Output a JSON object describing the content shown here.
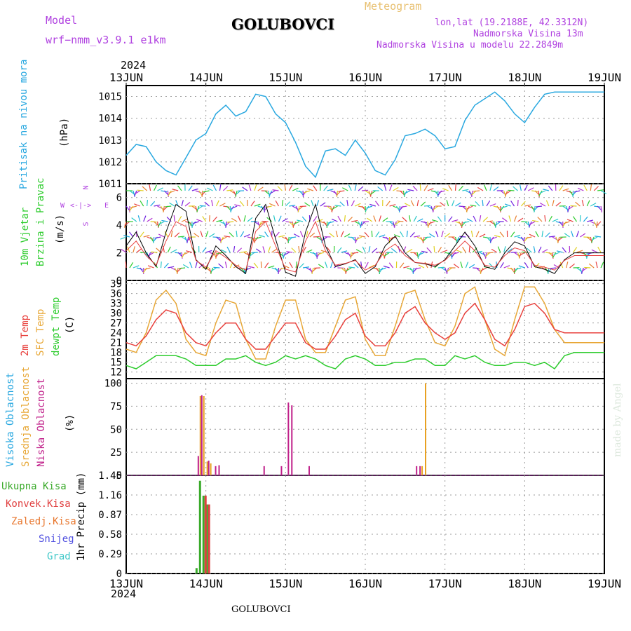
{
  "header": {
    "model_label": "Model",
    "model_name": "wrf−nmm_v3.9.1  e1km",
    "title": "GOLUBOVCI",
    "subtitle": "Meteogram",
    "lonlat": "lon,lat (19.2188E, 42.3312N)",
    "elevation": "Nadmorska Visina 13m",
    "model_elevation": "Nadmorska Visina u modelu 22.2849m",
    "year_top": "2024",
    "year_bottom": "2024",
    "footer_title": "GOLUBOVCI",
    "credit": "made by Angel"
  },
  "days": [
    "13JUN",
    "14JUN",
    "15JUN",
    "16JUN",
    "17JUN",
    "18JUN",
    "19JUN"
  ],
  "panels": {
    "pressure": {
      "label": "Pritisak na nivou mora",
      "unit": "(hPa)",
      "ticks": [
        "1015",
        "1014",
        "1013",
        "1012",
        "1011"
      ]
    },
    "wind": {
      "label1": "10m Vjetar",
      "label2": "Brzina i Pravac",
      "unit": "(m/s)",
      "ticks": [
        "6",
        "4",
        "2",
        "0"
      ],
      "compass_n": "N",
      "compass_s": "S",
      "compass_e": "E",
      "compass_w": "W"
    },
    "temp": {
      "label1": "2m Temp",
      "label2": "SFC Temp",
      "label3": "dewpt Temp",
      "unit": "(C)",
      "ticks": [
        "39",
        "36",
        "33",
        "30",
        "27",
        "24",
        "21",
        "18",
        "15",
        "12"
      ]
    },
    "cloud": {
      "label1": "Visoka Oblacnost",
      "label2": "Srednja Oblacnost",
      "label3": "Niska Oblacnost",
      "unit": "(%)",
      "ticks": [
        "100",
        "75",
        "50",
        "25",
        "0"
      ]
    },
    "precip": {
      "legend": [
        "Ukupna Kisa",
        "Konvek.Kisa",
        "Zaledj.Kisa",
        "Snijeg",
        "Grad"
      ],
      "unit": "1hr Precip (mm)",
      "ticks": [
        "1.45",
        "1.16",
        "0.87",
        "0.58",
        "0.29",
        "0"
      ]
    }
  },
  "colors": {
    "pressure": "#29a8e0",
    "temp2m": "#e8403c",
    "sfc": "#e8a838",
    "dew": "#2ecc2e",
    "high_cloud": "#3a8fe0",
    "mid_cloud": "#e8a020",
    "low_cloud": "#c0208a",
    "total_rain": "#3aaa2a",
    "conv_rain": "#e04040",
    "title_purple": "#b042e0",
    "meteogram": "#e8c070"
  },
  "chart_data": [
    {
      "type": "line",
      "title": "Pritisak na nivou mora",
      "ylabel": "(hPa)",
      "ylim": [
        1011,
        1015.5
      ],
      "x": [
        0,
        3,
        6,
        9,
        12,
        15,
        18,
        21,
        24,
        27,
        30,
        33,
        36,
        39,
        42,
        45,
        48,
        51,
        54,
        57,
        60,
        63,
        66,
        69,
        72,
        75,
        78,
        81,
        84,
        87,
        90,
        93,
        96,
        99,
        102,
        105,
        108,
        111,
        114,
        117,
        120,
        123,
        126,
        129,
        132,
        135,
        138,
        141,
        144
      ],
      "series": [
        {
          "values": [
            1012.3,
            1012.8,
            1012.7,
            1012.0,
            1011.6,
            1011.4,
            1012.2,
            1013.0,
            1013.3,
            1014.2,
            1014.6,
            1014.1,
            1014.3,
            1015.1,
            1015.0,
            1014.2,
            1013.8,
            1012.9,
            1011.8,
            1011.3,
            1012.5,
            1012.6,
            1012.3,
            1013.0,
            1012.4,
            1011.6,
            1011.4,
            1012.1,
            1013.2,
            1013.3,
            1013.5,
            1013.2,
            1012.6,
            1012.7,
            1013.9,
            1014.6,
            1014.9,
            1015.2,
            1014.8,
            1014.2,
            1013.8,
            1014.5,
            1015.1,
            1015.2,
            1015.2,
            1015.2,
            1015.2,
            1015.2,
            1015.2
          ]
        }
      ]
    },
    {
      "type": "line",
      "title": "10m Vjetar Brzina",
      "ylabel": "(m/s)",
      "ylim": [
        0,
        7
      ],
      "x": [
        0,
        3,
        6,
        9,
        12,
        15,
        18,
        21,
        24,
        27,
        30,
        33,
        36,
        39,
        42,
        45,
        48,
        51,
        54,
        57,
        60,
        63,
        66,
        69,
        72,
        75,
        78,
        81,
        84,
        87,
        90,
        93,
        96,
        99,
        102,
        105,
        108,
        111,
        114,
        117,
        120,
        123,
        126,
        129,
        132,
        135,
        138,
        141,
        144
      ],
      "series": [
        {
          "name": "speed",
          "values": [
            2.5,
            3.5,
            2.0,
            1.0,
            3.5,
            5.5,
            5.0,
            1.5,
            0.8,
            2.5,
            1.8,
            1.0,
            0.5,
            4.5,
            5.5,
            3.0,
            0.6,
            0.3,
            3.5,
            5.5,
            2.5,
            1.0,
            1.2,
            1.5,
            0.5,
            1.0,
            2.5,
            3.2,
            2.0,
            1.3,
            1.2,
            1.0,
            1.5,
            2.5,
            3.5,
            2.5,
            1.0,
            0.8,
            2.0,
            2.8,
            2.5,
            1.0,
            0.8,
            0.5,
            1.5,
            2.0,
            2.0,
            2.0,
            2.0
          ]
        }
      ]
    },
    {
      "type": "line",
      "title": "Temperature",
      "ylabel": "(C)",
      "ylim": [
        10,
        40
      ],
      "x": [
        0,
        3,
        6,
        9,
        12,
        15,
        18,
        21,
        24,
        27,
        30,
        33,
        36,
        39,
        42,
        45,
        48,
        51,
        54,
        57,
        60,
        63,
        66,
        69,
        72,
        75,
        78,
        81,
        84,
        87,
        90,
        93,
        96,
        99,
        102,
        105,
        108,
        111,
        114,
        117,
        120,
        123,
        126,
        129,
        132,
        135,
        138,
        141,
        144
      ],
      "series": [
        {
          "name": "2m Temp",
          "values": [
            21,
            20,
            23,
            28,
            31,
            30,
            24,
            21,
            20,
            24,
            27,
            27,
            22,
            19,
            19,
            23,
            27,
            27,
            21,
            19,
            19,
            23,
            28,
            30,
            23,
            20,
            20,
            24,
            30,
            32,
            27,
            24,
            22,
            24,
            30,
            33,
            28,
            22,
            20,
            25,
            32,
            33,
            30,
            25,
            24,
            24,
            24,
            24,
            24
          ]
        },
        {
          "name": "SFC Temp",
          "values": [
            19,
            18,
            24,
            34,
            37,
            33,
            22,
            18,
            17,
            27,
            34,
            33,
            22,
            16,
            16,
            26,
            34,
            34,
            22,
            18,
            18,
            26,
            34,
            35,
            22,
            17,
            17,
            26,
            36,
            37,
            28,
            21,
            20,
            26,
            36,
            38,
            28,
            19,
            17,
            28,
            38,
            38,
            33,
            25,
            21,
            21,
            21,
            21,
            21
          ]
        },
        {
          "name": "dewpt Temp",
          "values": [
            14,
            13,
            15,
            17,
            17,
            17,
            16,
            14,
            14,
            14,
            16,
            16,
            17,
            15,
            14,
            15,
            17,
            16,
            17,
            16,
            14,
            13,
            16,
            17,
            16,
            14,
            14,
            15,
            15,
            16,
            16,
            14,
            14,
            17,
            16,
            17,
            15,
            14,
            14,
            15,
            15,
            14,
            15,
            13,
            17,
            18,
            18,
            18,
            18
          ]
        }
      ]
    },
    {
      "type": "bar",
      "title": "Oblacnost",
      "ylabel": "(%)",
      "ylim": [
        0,
        100
      ],
      "series": [
        {
          "name": "Visoka Oblacnost",
          "points": []
        },
        {
          "name": "Srednja Oblacnost",
          "points": [
            [
              21,
              86
            ],
            [
              22,
              86
            ],
            [
              23,
              15
            ],
            [
              24,
              13
            ],
            [
              85,
              10
            ],
            [
              86,
              100
            ]
          ]
        },
        {
          "name": "Niska Oblacnost",
          "points": [
            [
              20,
              21
            ],
            [
              21,
              87
            ],
            [
              23,
              16
            ],
            [
              25,
              10
            ],
            [
              26,
              11
            ],
            [
              39,
              10
            ],
            [
              44,
              10
            ],
            [
              46,
              79
            ],
            [
              47,
              76
            ],
            [
              52,
              10
            ],
            [
              83,
              10
            ],
            [
              84,
              10
            ]
          ]
        }
      ]
    },
    {
      "type": "bar",
      "title": "1hr Precip",
      "ylabel": "1hr Precip (mm)",
      "ylim": [
        0,
        1.45
      ],
      "series": [
        {
          "name": "Ukupna Kisa",
          "points": [
            [
              20,
              0.08
            ],
            [
              21,
              1.37
            ],
            [
              22,
              1.15
            ],
            [
              23,
              1.02
            ]
          ]
        },
        {
          "name": "Konvek.Kisa",
          "points": [
            [
              22,
              1.15
            ],
            [
              23,
              1.02
            ]
          ]
        }
      ]
    }
  ]
}
